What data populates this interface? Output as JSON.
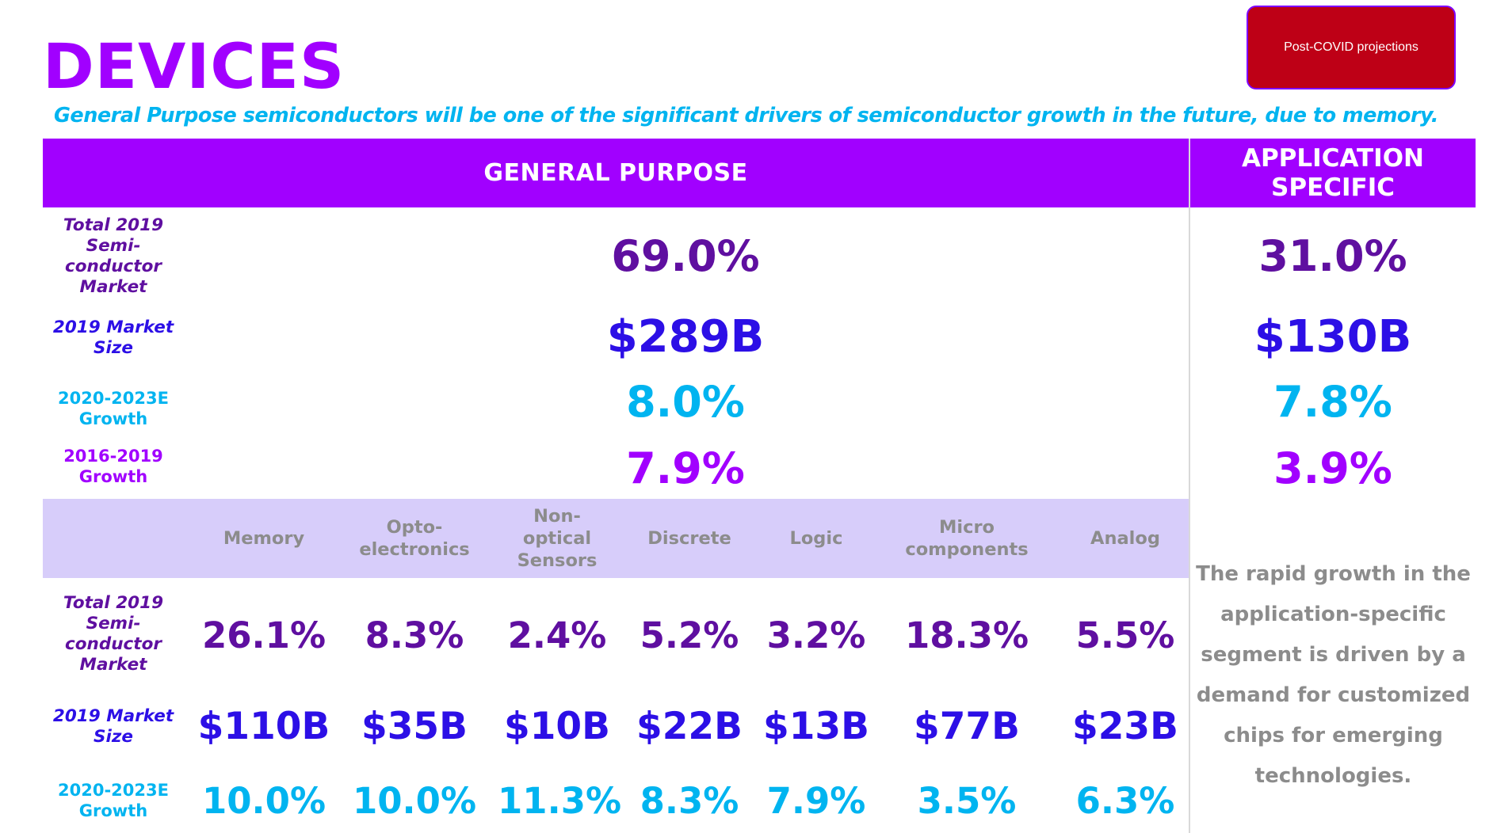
{
  "title": "DEVICES",
  "subtitle": "General Purpose semiconductors will be one of the significant drivers of semiconductor growth in the future, due to memory.",
  "covid_button": "Post-COVID projections",
  "headers": {
    "general_purpose": "GENERAL PURPOSE",
    "application_specific": "APPLICATION SPECIFIC"
  },
  "top_rows": [
    {
      "label": "Total 2019 Semi-conductor Market",
      "general": "69.0%",
      "specific": "31.0%"
    },
    {
      "label": "2019 Market Size",
      "general": "$289B",
      "specific": "$130B"
    },
    {
      "label": "2020-2023E Growth",
      "general": "8.0%",
      "specific": "7.8%"
    },
    {
      "label": "2016-2019 Growth",
      "general": "7.9%",
      "specific": "3.9%"
    }
  ],
  "categories": [
    "Memory",
    "Opto-electronics",
    "Non-optical Sensors",
    "Discrete",
    "Logic",
    "Micro components",
    "Analog"
  ],
  "bottom_rows": [
    {
      "label": "Total 2019 Semi-conductor Market",
      "values": [
        "26.1%",
        "8.3%",
        "2.4%",
        "5.2%",
        "3.2%",
        "18.3%",
        "5.5%"
      ]
    },
    {
      "label": "2019 Market Size",
      "values": [
        "$110B",
        "$35B",
        "$10B",
        "$22B",
        "$13B",
        "$77B",
        "$23B"
      ]
    },
    {
      "label": "2020-2023E Growth",
      "values": [
        "10.0%",
        "10.0%",
        "11.3%",
        "8.3%",
        "7.9%",
        "3.5%",
        "6.3%"
      ]
    }
  ],
  "note": "The rapid growth in the application-specific segment is driven by a demand for customized chips for emerging technologies.",
  "colors": {
    "brand_purple": "#a100ff",
    "dark_purple": "#5f0fa0",
    "blue": "#2c0fe6",
    "cyan": "#00b4f0",
    "lavender": "#d7cdfa",
    "red": "#be0016"
  }
}
